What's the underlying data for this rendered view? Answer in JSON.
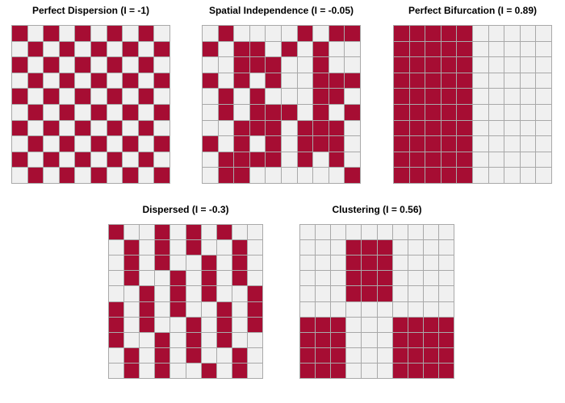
{
  "colors": {
    "filled": "#A60D33",
    "empty": "#F0F0F0",
    "grid_line": "#A9A9A9",
    "background": "#FFFFFF",
    "title_text": "#000000"
  },
  "chart_data": [
    {
      "type": "heatmap",
      "title": "Perfect Dispersion (I = -1)",
      "moran_i": -1,
      "grid_size": "10x10",
      "legend_position": "none",
      "rows": [
        "1010101010",
        "0101010101",
        "1010101010",
        "0101010101",
        "1010101010",
        "0101010101",
        "1010101010",
        "0101010101",
        "1010101010",
        "0101010101"
      ]
    },
    {
      "type": "heatmap",
      "title": "Spatial Independence (I = -0.05)",
      "moran_i": -0.05,
      "grid_size": "10x10",
      "legend_position": "none",
      "rows": [
        "0100001011",
        "1011010100",
        "0011100100",
        "1010100111",
        "0101000110",
        "0101110101",
        "0011101110",
        "1010101110",
        "0111101010",
        "0110000001"
      ]
    },
    {
      "type": "heatmap",
      "title": "Perfect Bifurcation (I = 0.89)",
      "moran_i": 0.89,
      "grid_size": "10x10",
      "legend_position": "none",
      "rows": [
        "1111100000",
        "1111100000",
        "1111100000",
        "1111100000",
        "1111100000",
        "1111100000",
        "1111100000",
        "1111100000",
        "1111100000",
        "1111100000"
      ]
    },
    {
      "type": "heatmap",
      "title": "Dispersed (I = -0.3)",
      "moran_i": -0.3,
      "grid_size": "10x10",
      "legend_position": "none",
      "rows": [
        "1001010100",
        "0101010010",
        "0101001010",
        "0100101010",
        "0010101001",
        "1010100101",
        "1010010101",
        "1001010100",
        "0101010010",
        "0101001010"
      ]
    },
    {
      "type": "heatmap",
      "title": "Clustering (I = 0.56)",
      "moran_i": 0.56,
      "grid_size": "10x10",
      "legend_position": "none",
      "rows": [
        "0000000000",
        "0001110000",
        "0001110000",
        "0001110000",
        "0001110000",
        "0000000000",
        "1110001111",
        "1110001111",
        "1110001111",
        "1110001111"
      ]
    }
  ]
}
